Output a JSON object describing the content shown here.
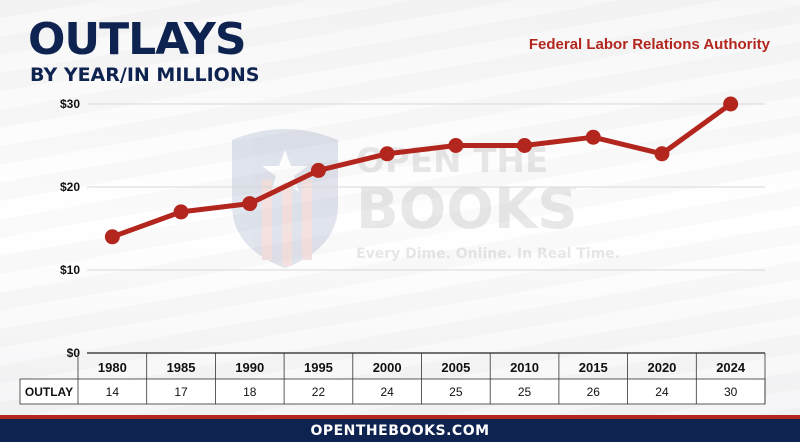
{
  "header": {
    "title": "OUTLAYS",
    "subtitle": "BY YEAR/IN MILLIONS",
    "agency": "Federal Labor Relations Authority"
  },
  "watermark": {
    "line1": "OPEN THE",
    "line2": "BOOKS",
    "tm": "™",
    "tagline": "Every Dime. Online. In Real Time.",
    "icon": "shield-flag-icon"
  },
  "footer": {
    "text": "OPENTHEBOOKS.COM"
  },
  "colors": {
    "navy": "#0f2350",
    "red": "#b3261e",
    "line": "#b3261e"
  },
  "chart_data": {
    "type": "line",
    "categories": [
      "1980",
      "1985",
      "1990",
      "1995",
      "2000",
      "2005",
      "2010",
      "2015",
      "2020",
      "2024"
    ],
    "values": [
      14,
      17,
      18,
      22,
      24,
      25,
      25,
      26,
      24,
      30
    ],
    "ylim": [
      0,
      30
    ],
    "y_ticks": [
      0,
      10,
      20,
      30
    ],
    "y_tick_labels": [
      "$0",
      "$10",
      "$20",
      "$30"
    ],
    "grid": true,
    "table_row_label": "OUTLAY",
    "table_values": [
      "14",
      "17",
      "18",
      "22",
      "24",
      "25",
      "25",
      "26",
      "24",
      "30"
    ]
  }
}
